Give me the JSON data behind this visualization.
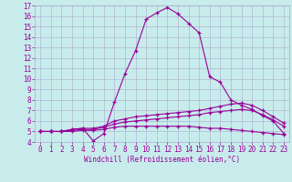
{
  "xlabel": "Windchill (Refroidissement éolien,°C)",
  "ylabel": "",
  "bg_color": "#c8ecec",
  "line_color": "#990099",
  "grid_color": "#aaaacc",
  "xlim": [
    -0.5,
    23.5
  ],
  "ylim": [
    4,
    17
  ],
  "xticks": [
    0,
    1,
    2,
    3,
    4,
    5,
    6,
    7,
    8,
    9,
    10,
    11,
    12,
    13,
    14,
    15,
    16,
    17,
    18,
    19,
    20,
    21,
    22,
    23
  ],
  "yticks": [
    4,
    5,
    6,
    7,
    8,
    9,
    10,
    11,
    12,
    13,
    14,
    15,
    16,
    17
  ],
  "curve1_x": [
    0,
    1,
    2,
    3,
    4,
    5,
    6,
    7,
    8,
    9,
    10,
    11,
    12,
    13,
    14,
    15,
    16,
    17,
    18,
    19,
    20,
    21,
    22,
    23
  ],
  "curve1_y": [
    5,
    5,
    5,
    5.2,
    5.3,
    4.1,
    4.8,
    7.8,
    10.5,
    12.7,
    15.7,
    16.3,
    16.8,
    16.2,
    15.3,
    14.4,
    10.2,
    9.7,
    8.0,
    7.5,
    7.1,
    6.5,
    6.0,
    4.8
  ],
  "curve2_x": [
    0,
    1,
    2,
    3,
    4,
    5,
    6,
    7,
    8,
    9,
    10,
    11,
    12,
    13,
    14,
    15,
    16,
    17,
    18,
    19,
    20,
    21,
    22,
    23
  ],
  "curve2_y": [
    5,
    5,
    5,
    5.2,
    5.3,
    5.3,
    5.5,
    6.0,
    6.2,
    6.4,
    6.5,
    6.6,
    6.7,
    6.8,
    6.9,
    7.0,
    7.2,
    7.4,
    7.6,
    7.7,
    7.5,
    7.0,
    6.4,
    5.8
  ],
  "curve3_x": [
    0,
    1,
    2,
    3,
    4,
    5,
    6,
    7,
    8,
    9,
    10,
    11,
    12,
    13,
    14,
    15,
    16,
    17,
    18,
    19,
    20,
    21,
    22,
    23
  ],
  "curve3_y": [
    5,
    5,
    5,
    5.1,
    5.2,
    5.2,
    5.4,
    5.7,
    5.9,
    6.0,
    6.1,
    6.2,
    6.3,
    6.4,
    6.5,
    6.6,
    6.8,
    6.9,
    7.0,
    7.1,
    7.0,
    6.6,
    6.1,
    5.5
  ],
  "curve4_x": [
    0,
    1,
    2,
    3,
    4,
    5,
    6,
    7,
    8,
    9,
    10,
    11,
    12,
    13,
    14,
    15,
    16,
    17,
    18,
    19,
    20,
    21,
    22,
    23
  ],
  "curve4_y": [
    5,
    5,
    5,
    5.0,
    5.1,
    5.1,
    5.2,
    5.4,
    5.5,
    5.5,
    5.5,
    5.5,
    5.5,
    5.5,
    5.5,
    5.4,
    5.3,
    5.3,
    5.2,
    5.1,
    5.0,
    4.9,
    4.8,
    4.7
  ],
  "tick_fontsize": 5.5,
  "xlabel_fontsize": 5.5,
  "linewidth": 0.8,
  "markersize": 3.5
}
